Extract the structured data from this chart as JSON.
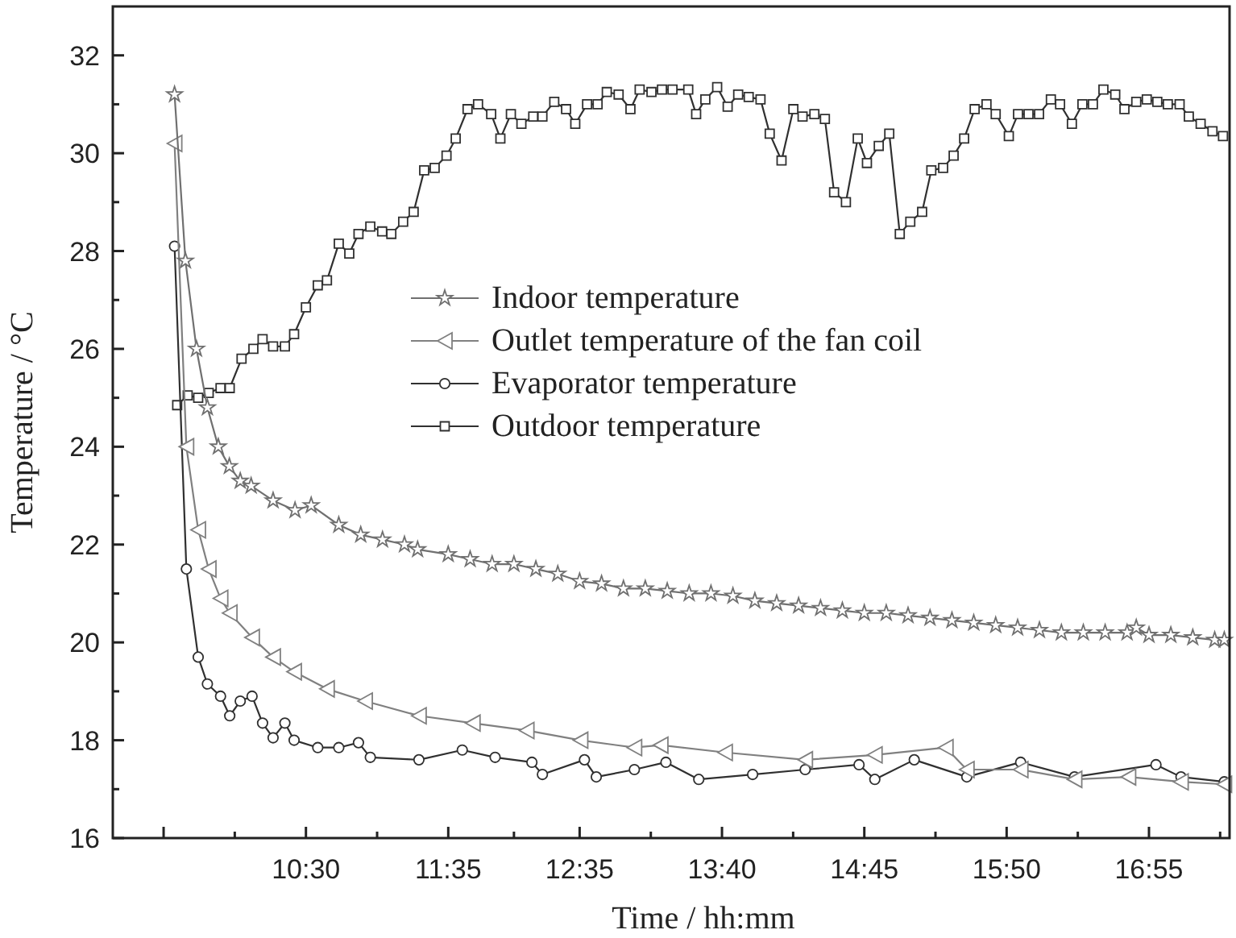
{
  "chart_data": {
    "type": "line",
    "xlabel": "Time / hh:mm",
    "ylabel": "Temperature / °C",
    "xlim": [
      9.03,
      17.53
    ],
    "ylim": [
      16,
      33
    ],
    "xticks": [
      {
        "value": 9.4167,
        "label": null
      },
      {
        "value": 9.9583,
        "label": null
      },
      {
        "value": 10.5,
        "label": "10:30"
      },
      {
        "value": 11.0417,
        "label": null
      },
      {
        "value": 11.5833,
        "label": "11:35"
      },
      {
        "value": 12.0833,
        "label": null
      },
      {
        "value": 12.5833,
        "label": "12:35"
      },
      {
        "value": 13.125,
        "label": null
      },
      {
        "value": 13.6667,
        "label": "13:40"
      },
      {
        "value": 14.2083,
        "label": null
      },
      {
        "value": 14.75,
        "label": "14:45"
      },
      {
        "value": 15.2917,
        "label": null
      },
      {
        "value": 15.8333,
        "label": "15:50"
      },
      {
        "value": 16.375,
        "label": null
      },
      {
        "value": 16.9167,
        "label": "16:55"
      },
      {
        "value": 17.4583,
        "label": null
      }
    ],
    "yticks": [
      16,
      {
        "value": 17,
        "label": null
      },
      18,
      {
        "value": 19,
        "label": null
      },
      20,
      {
        "value": 21,
        "label": null
      },
      22,
      {
        "value": 23,
        "label": null
      },
      24,
      {
        "value": 25,
        "label": null
      },
      26,
      {
        "value": 27,
        "label": null
      },
      28,
      {
        "value": 29,
        "label": null
      },
      30,
      {
        "value": 31,
        "label": null
      },
      32
    ],
    "grid": false,
    "legend": "center",
    "line_style": "solid",
    "series": [
      {
        "name": "Indoor temperature",
        "color": "#707070",
        "marker": "star",
        "x": [
          9.5,
          9.583,
          9.667,
          9.75,
          9.833,
          9.917,
          10.0,
          10.083,
          10.25,
          10.417,
          10.54,
          10.75,
          10.917,
          11.083,
          11.25,
          11.35,
          11.583,
          11.75,
          11.917,
          12.083,
          12.25,
          12.417,
          12.583,
          12.75,
          12.917,
          13.083,
          13.25,
          13.417,
          13.583,
          13.75,
          13.917,
          14.083,
          14.25,
          14.417,
          14.583,
          14.75,
          14.917,
          15.083,
          15.25,
          15.417,
          15.583,
          15.75,
          15.917,
          16.083,
          16.25,
          16.417,
          16.583,
          16.75,
          16.82,
          16.917,
          17.083,
          17.25,
          17.417,
          17.49
        ],
        "values": [
          31.2,
          27.8,
          26.0,
          24.8,
          24.0,
          23.6,
          23.3,
          23.2,
          22.9,
          22.7,
          22.8,
          22.4,
          22.2,
          22.1,
          22.0,
          21.9,
          21.8,
          21.7,
          21.6,
          21.6,
          21.5,
          21.4,
          21.25,
          21.2,
          21.1,
          21.1,
          21.05,
          21.0,
          21.0,
          20.95,
          20.85,
          20.8,
          20.75,
          20.7,
          20.65,
          20.6,
          20.6,
          20.55,
          20.5,
          20.45,
          20.4,
          20.35,
          20.3,
          20.25,
          20.2,
          20.2,
          20.2,
          20.2,
          20.3,
          20.15,
          20.15,
          20.1,
          20.05,
          20.05
        ]
      },
      {
        "name": "Outlet temperature of the fan coil",
        "color": "#808080",
        "marker": "triangle",
        "x": [
          9.5,
          9.59,
          9.68,
          9.76,
          9.85,
          9.92,
          10.09,
          10.25,
          10.41,
          10.66,
          10.95,
          11.36,
          11.77,
          12.18,
          12.59,
          13.0,
          13.2,
          13.69,
          14.3,
          14.83,
          15.37,
          15.53,
          15.94,
          16.35,
          16.76,
          17.16,
          17.49
        ],
        "values": [
          30.2,
          24.0,
          22.3,
          21.5,
          20.9,
          20.6,
          20.1,
          19.7,
          19.4,
          19.05,
          18.8,
          18.5,
          18.35,
          18.2,
          18.0,
          17.85,
          17.9,
          17.75,
          17.6,
          17.7,
          17.85,
          17.4,
          17.4,
          17.2,
          17.25,
          17.15,
          17.1
        ]
      },
      {
        "name": "Evaporator temperature",
        "color": "#303030",
        "marker": "circle",
        "x": [
          9.5,
          9.59,
          9.68,
          9.75,
          9.85,
          9.92,
          10.0,
          10.09,
          10.17,
          10.25,
          10.34,
          10.41,
          10.59,
          10.75,
          10.9,
          10.99,
          11.36,
          11.69,
          11.94,
          12.22,
          12.3,
          12.62,
          12.71,
          13.0,
          13.24,
          13.49,
          13.9,
          14.3,
          14.71,
          14.83,
          15.13,
          15.53,
          15.94,
          16.35,
          16.97,
          17.16,
          17.49
        ],
        "values": [
          28.1,
          21.5,
          19.7,
          19.15,
          18.9,
          18.5,
          18.8,
          18.9,
          18.35,
          18.05,
          18.35,
          18.0,
          17.85,
          17.85,
          17.95,
          17.65,
          17.6,
          17.8,
          17.65,
          17.55,
          17.3,
          17.6,
          17.25,
          17.4,
          17.55,
          17.2,
          17.3,
          17.4,
          17.5,
          17.2,
          17.6,
          17.25,
          17.55,
          17.25,
          17.5,
          17.25,
          17.15
        ]
      },
      {
        "name": "Outdoor temperature",
        "color": "#303030",
        "marker": "square",
        "x": [
          9.52,
          9.6,
          9.68,
          9.76,
          9.85,
          9.92,
          10.01,
          10.1,
          10.17,
          10.25,
          10.34,
          10.41,
          10.5,
          10.59,
          10.66,
          10.75,
          10.83,
          10.9,
          10.99,
          11.08,
          11.15,
          11.24,
          11.32,
          11.4,
          11.48,
          11.57,
          11.64,
          11.73,
          11.81,
          11.91,
          11.98,
          12.06,
          12.14,
          12.23,
          12.3,
          12.39,
          12.48,
          12.55,
          12.64,
          12.72,
          12.79,
          12.88,
          12.97,
          13.04,
          13.13,
          13.21,
          13.29,
          13.41,
          13.47,
          13.54,
          13.63,
          13.71,
          13.79,
          13.87,
          13.96,
          14.03,
          14.12,
          14.21,
          14.28,
          14.37,
          14.45,
          14.52,
          14.61,
          14.7,
          14.77,
          14.86,
          14.94,
          15.02,
          15.1,
          15.19,
          15.26,
          15.35,
          15.43,
          15.51,
          15.59,
          15.68,
          15.75,
          15.85,
          15.92,
          16.0,
          16.08,
          16.17,
          16.24,
          16.33,
          16.41,
          16.49,
          16.57,
          16.66,
          16.73,
          16.82,
          16.9,
          16.98,
          17.06,
          17.15,
          17.22,
          17.31,
          17.4,
          17.48
        ],
        "values": [
          24.85,
          25.05,
          25.0,
          25.1,
          25.2,
          25.2,
          25.8,
          26.0,
          26.2,
          26.05,
          26.05,
          26.3,
          26.85,
          27.3,
          27.4,
          28.15,
          27.95,
          28.35,
          28.5,
          28.4,
          28.35,
          28.6,
          28.8,
          29.65,
          29.7,
          29.95,
          30.3,
          30.9,
          31.0,
          30.8,
          30.3,
          30.8,
          30.6,
          30.75,
          30.75,
          31.05,
          30.9,
          30.6,
          31.0,
          31.0,
          31.25,
          31.2,
          30.9,
          31.3,
          31.25,
          31.3,
          31.3,
          31.3,
          30.8,
          31.1,
          31.35,
          30.95,
          31.2,
          31.15,
          31.1,
          30.4,
          29.85,
          30.9,
          30.75,
          30.8,
          30.7,
          29.2,
          29.0,
          30.3,
          29.8,
          30.15,
          30.4,
          28.35,
          28.6,
          28.8,
          29.65,
          29.7,
          29.95,
          30.3,
          30.9,
          31.0,
          30.8,
          30.35,
          30.8,
          30.8,
          30.8,
          31.1,
          31.0,
          30.6,
          31.0,
          31.0,
          31.3,
          31.2,
          30.9,
          31.05,
          31.1,
          31.05,
          31.0,
          31.0,
          30.75,
          30.6,
          30.45,
          30.35
        ]
      }
    ]
  }
}
